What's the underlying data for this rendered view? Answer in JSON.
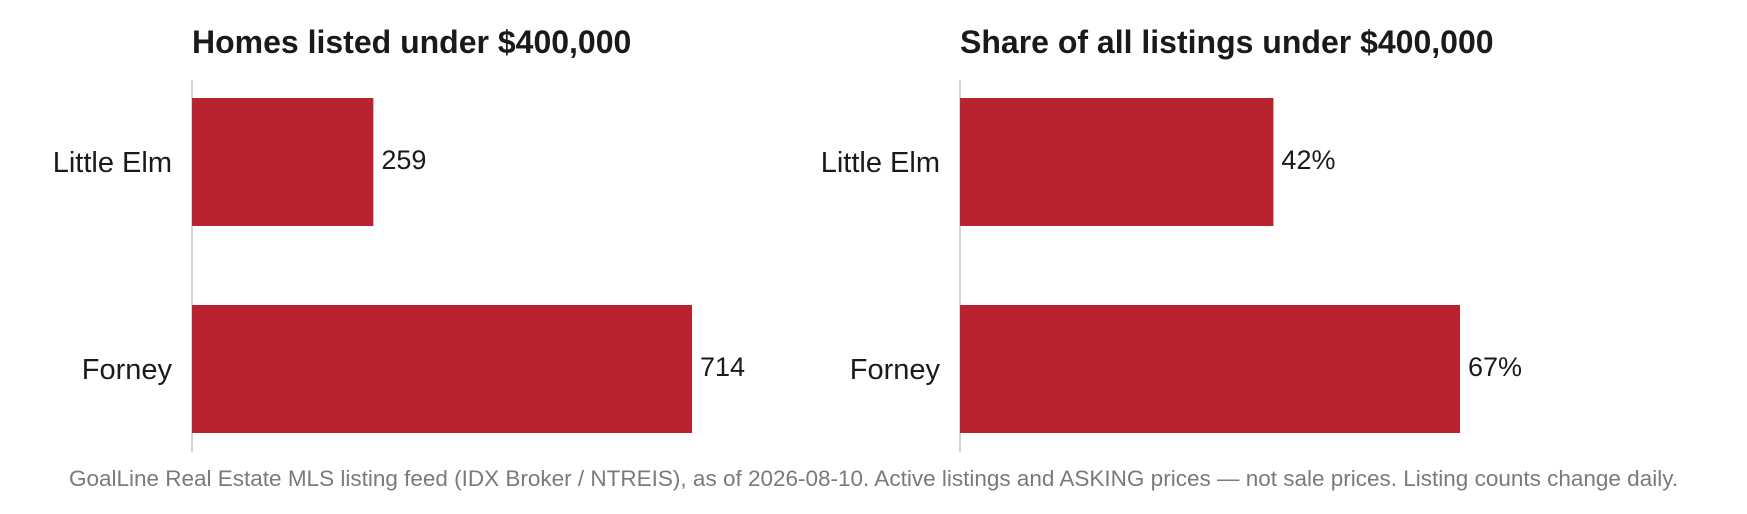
{
  "accent_color": "#b8232f",
  "footnote": "GoalLine Real Estate MLS listing feed (IDX Broker / NTREIS), as of 2026-08-10. Active listings and ASKING prices — not sale prices. Listing counts change daily.",
  "chart_data": [
    {
      "type": "bar",
      "orientation": "horizontal",
      "title": "Homes listed under $400,000",
      "categories": [
        "Little Elm",
        "Forney"
      ],
      "values": [
        259,
        714
      ],
      "value_labels": [
        "259",
        "714"
      ],
      "xlim": [
        0,
        714
      ],
      "grid": false
    },
    {
      "type": "bar",
      "orientation": "horizontal",
      "title": "Share of all listings under $400,000",
      "categories": [
        "Little Elm",
        "Forney"
      ],
      "values": [
        42,
        67
      ],
      "value_labels": [
        "42%",
        "67%"
      ],
      "xlim": [
        0,
        67
      ],
      "grid": false
    }
  ]
}
